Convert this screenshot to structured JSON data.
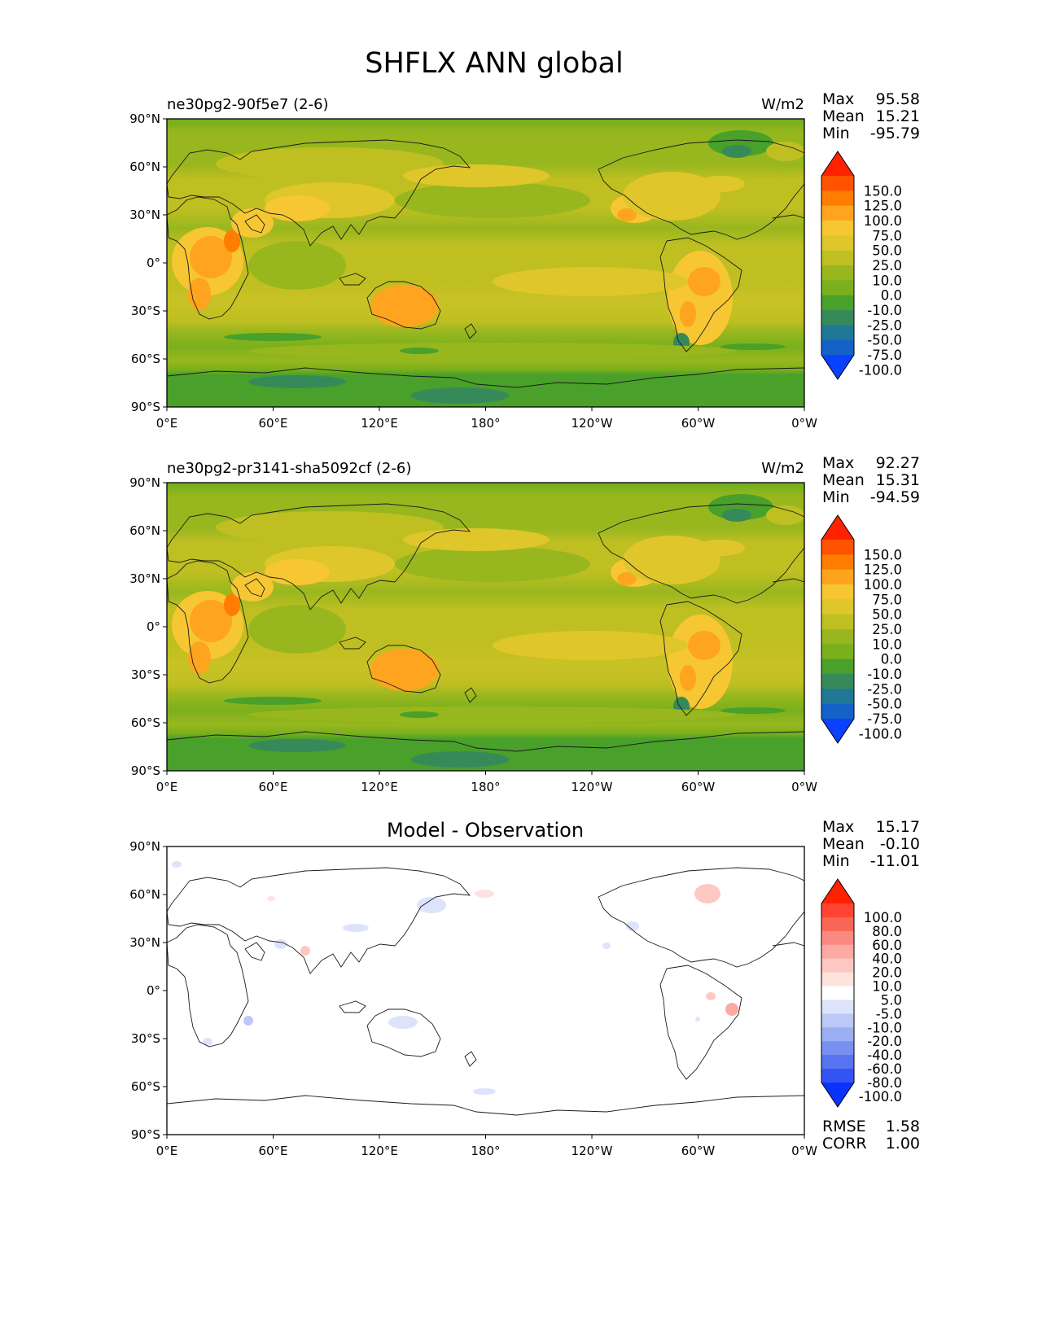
{
  "figure": {
    "title": "SHFLX ANN global"
  },
  "axes": {
    "lat_labels": [
      "90°N",
      "60°N",
      "30°N",
      "0°",
      "30°S",
      "60°S",
      "90°S"
    ],
    "lon_labels": [
      "0°E",
      "60°E",
      "120°E",
      "180°",
      "120°W",
      "60°W",
      "0°W"
    ]
  },
  "panels": [
    {
      "title": "ne30pg2-90f5e7 (2-6)",
      "units": "W/m2",
      "stats": {
        "max_label": "Max",
        "max": "95.58",
        "mean_label": "Mean",
        "mean": "15.21",
        "min_label": "Min",
        "min": "-95.79"
      },
      "colorbar": {
        "levels": [
          "150.0",
          "125.0",
          "100.0",
          "75.0",
          "50.0",
          "25.0",
          "10.0",
          "0.0",
          "-10.0",
          "-25.0",
          "-50.0",
          "-75.0",
          "-100.0"
        ],
        "colors": [
          "#ff2200",
          "#ff5200",
          "#ff7d00",
          "#ffa41e",
          "#f7c633",
          "#dfc62a",
          "#bfbf22",
          "#98b71e",
          "#7ab01c",
          "#49a02a",
          "#368a5a",
          "#1f7896",
          "#1462c8",
          "#0a41ff"
        ]
      }
    },
    {
      "title": "ne30pg2-pr3141-sha5092cf (2-6)",
      "units": "W/m2",
      "stats": {
        "max_label": "Max",
        "max": "92.27",
        "mean_label": "Mean",
        "mean": "15.31",
        "min_label": "Min",
        "min": "-94.59"
      },
      "colorbar": {
        "levels": [
          "150.0",
          "125.0",
          "100.0",
          "75.0",
          "50.0",
          "25.0",
          "10.0",
          "0.0",
          "-10.0",
          "-25.0",
          "-50.0",
          "-75.0",
          "-100.0"
        ],
        "colors": [
          "#ff2200",
          "#ff5200",
          "#ff7d00",
          "#ffa41e",
          "#f7c633",
          "#dfc62a",
          "#bfbf22",
          "#98b71e",
          "#7ab01c",
          "#49a02a",
          "#368a5a",
          "#1f7896",
          "#1462c8",
          "#0a41ff"
        ]
      }
    },
    {
      "title": "Model - Observation",
      "stats": {
        "max_label": "Max",
        "max": "15.17",
        "mean_label": "Mean",
        "mean": "-0.10",
        "min_label": "Min",
        "min": "-11.01"
      },
      "colorbar": {
        "levels": [
          "100.0",
          "80.0",
          "60.0",
          "40.0",
          "20.0",
          "10.0",
          "5.0",
          "-5.0",
          "-10.0",
          "-20.0",
          "-40.0",
          "-60.0",
          "-80.0",
          "-100.0"
        ],
        "colors": [
          "#ff2200",
          "#ff4433",
          "#f86655",
          "#fb8a80",
          "#fcaaa3",
          "#fdc8c2",
          "#fee2de",
          "#ffffff",
          "#dde3fb",
          "#bcc8f6",
          "#9aaef3",
          "#7890ef",
          "#5773f0",
          "#3355f3",
          "#0a33ff"
        ]
      },
      "metrics": {
        "rmse_label": "RMSE",
        "rmse": "1.58",
        "corr_label": "CORR",
        "corr": "1.00"
      }
    }
  ]
}
